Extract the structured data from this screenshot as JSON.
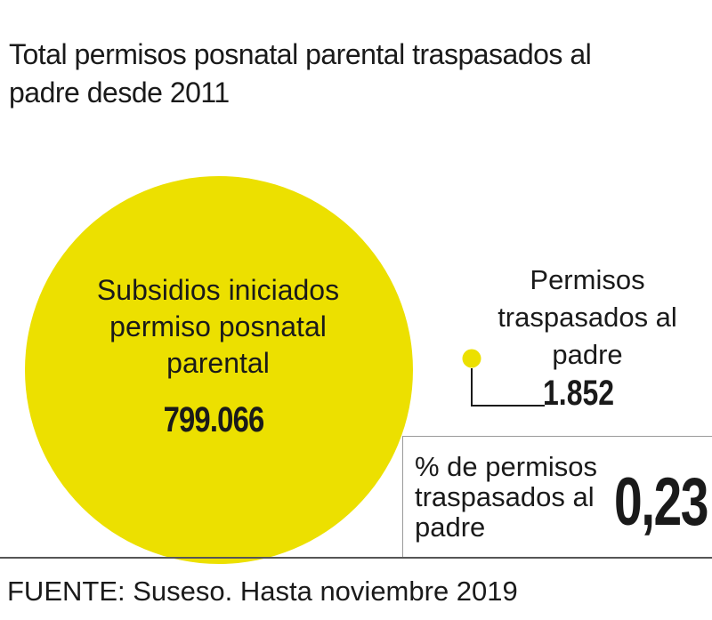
{
  "title": "Total permisos posnatal parental traspasados al padre desde 2011",
  "chart_data": {
    "type": "bubble",
    "series": [
      {
        "label": "Subsidios iniciados permiso posnatal parental",
        "value": 799066,
        "display": "799.066"
      },
      {
        "label": "Permisos traspasados al padre",
        "value": 1852,
        "display": "1.852"
      }
    ],
    "percentage": {
      "label": "% de permisos traspasados al padre",
      "value": 0.23,
      "display": "0,23"
    }
  },
  "source": "FUENTE: Suseso. Hasta noviembre 2019",
  "colors": {
    "bubble": "#ece000",
    "text": "#1a1a1a",
    "connector": "#1a1a1a",
    "rule": "#555555"
  }
}
